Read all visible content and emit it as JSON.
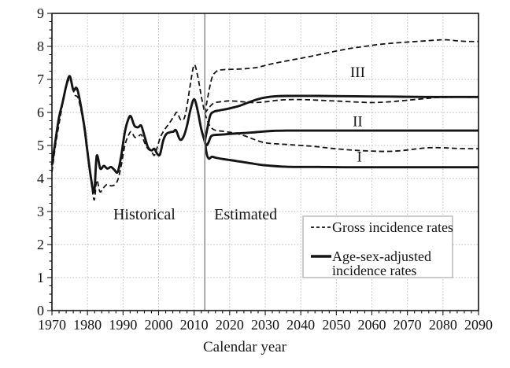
{
  "chart_data": {
    "type": "line",
    "title": "",
    "xlabel": "Calendar year",
    "ylabel": "",
    "xlim": [
      1970,
      2090
    ],
    "ylim": [
      0,
      9
    ],
    "x_tick_labels": [
      "1970",
      "1980",
      "1990",
      "2000",
      "2010",
      "2020",
      "2030",
      "2040",
      "2050",
      "2060",
      "2070",
      "2080",
      "2090"
    ],
    "x_ticks": [
      1970,
      1980,
      1990,
      2000,
      2010,
      2020,
      2030,
      2040,
      2050,
      2060,
      2070,
      2080,
      2090
    ],
    "x_minor_step": 2,
    "y_tick_labels": [
      "0",
      "1",
      "2",
      "3",
      "4",
      "5",
      "6",
      "7",
      "8",
      "9"
    ],
    "y_ticks": [
      0,
      1,
      2,
      3,
      4,
      5,
      6,
      7,
      8,
      9
    ],
    "y_minor_step": 0.25,
    "grid": true,
    "divider_x": 2013,
    "region_labels": [
      {
        "text": "Historical",
        "x": 1996,
        "y": 2.9
      },
      {
        "text": "Estimated",
        "x": 2024.5,
        "y": 2.9
      }
    ],
    "scenario_labels": [
      {
        "text": "III",
        "x": 2056,
        "y": 7.2
      },
      {
        "text": "II",
        "x": 2056,
        "y": 5.72
      },
      {
        "text": "I",
        "x": 2056.5,
        "y": 4.64
      }
    ],
    "legend": {
      "items": [
        {
          "style": "dashed",
          "lines": [
            "Gross incidence rates"
          ]
        },
        {
          "style": "solid",
          "lines": [
            "Age-sex-adjusted",
            "incidence rates"
          ]
        }
      ]
    },
    "colors": {
      "line": "#141414",
      "grid": "#b8b8b8",
      "divider": "#8c8c8c",
      "legend_border": "#aaaaaa",
      "background": "#ffffff"
    },
    "series": [
      {
        "name": "gross-historical",
        "legend": "Gross incidence rates",
        "style": "dashed",
        "points": [
          [
            1970,
            4.2
          ],
          [
            1971,
            5.0
          ],
          [
            1972,
            5.65
          ],
          [
            1973,
            6.25
          ],
          [
            1974,
            6.8
          ],
          [
            1975,
            7.02
          ],
          [
            1975.5,
            6.95
          ],
          [
            1976.3,
            6.55
          ],
          [
            1977.3,
            6.45
          ],
          [
            1978.3,
            6.0
          ],
          [
            1979.2,
            5.4
          ],
          [
            1980,
            4.75
          ],
          [
            1981,
            3.95
          ],
          [
            1981.9,
            3.35
          ],
          [
            1982.6,
            3.95
          ],
          [
            1983.5,
            3.6
          ],
          [
            1984.5,
            3.72
          ],
          [
            1985.5,
            3.82
          ],
          [
            1986.5,
            3.78
          ],
          [
            1987.5,
            3.8
          ],
          [
            1988.5,
            3.95
          ],
          [
            1989.5,
            4.4
          ],
          [
            1990.5,
            5.0
          ],
          [
            1991.5,
            5.3
          ],
          [
            1992.3,
            5.42
          ],
          [
            1993.3,
            5.25
          ],
          [
            1994.3,
            5.28
          ],
          [
            1995.2,
            5.32
          ],
          [
            1996,
            5.1
          ],
          [
            1997,
            4.9
          ],
          [
            1998,
            4.82
          ],
          [
            1998.8,
            4.7
          ],
          [
            1999.5,
            4.9
          ],
          [
            2000.5,
            5.25
          ],
          [
            2001.5,
            5.45
          ],
          [
            2002.5,
            5.6
          ],
          [
            2003.5,
            5.75
          ],
          [
            2004.5,
            5.92
          ],
          [
            2005.2,
            6.0
          ],
          [
            2006.2,
            5.78
          ],
          [
            2007.2,
            5.82
          ],
          [
            2008,
            6.2
          ],
          [
            2009,
            6.9
          ],
          [
            2010,
            7.44
          ],
          [
            2011,
            7.1
          ],
          [
            2012,
            6.5
          ],
          [
            2013,
            5.97
          ]
        ]
      },
      {
        "name": "gross-scenario-III",
        "legend": "Gross incidence rates",
        "scenario": "III",
        "style": "dashed",
        "points": [
          [
            2013,
            5.97
          ],
          [
            2014,
            6.55
          ],
          [
            2015,
            7.05
          ],
          [
            2016,
            7.22
          ],
          [
            2017,
            7.28
          ],
          [
            2019,
            7.3
          ],
          [
            2022,
            7.31
          ],
          [
            2025,
            7.33
          ],
          [
            2028,
            7.37
          ],
          [
            2031,
            7.45
          ],
          [
            2034,
            7.52
          ],
          [
            2038,
            7.6
          ],
          [
            2042,
            7.68
          ],
          [
            2046,
            7.77
          ],
          [
            2050,
            7.86
          ],
          [
            2054,
            7.94
          ],
          [
            2058,
            8.0
          ],
          [
            2062,
            8.06
          ],
          [
            2066,
            8.1
          ],
          [
            2070,
            8.13
          ],
          [
            2074,
            8.16
          ],
          [
            2078,
            8.19
          ],
          [
            2081,
            8.2
          ],
          [
            2084,
            8.17
          ],
          [
            2087,
            8.15
          ],
          [
            2090,
            8.15
          ]
        ]
      },
      {
        "name": "gross-scenario-I",
        "legend": "Gross incidence rates",
        "scenario": "I",
        "style": "dashed",
        "points": [
          [
            2013,
            5.97
          ],
          [
            2014,
            5.68
          ],
          [
            2015,
            5.52
          ],
          [
            2016,
            5.46
          ],
          [
            2018,
            5.43
          ],
          [
            2020,
            5.4
          ],
          [
            2022,
            5.36
          ],
          [
            2024,
            5.3
          ],
          [
            2026,
            5.22
          ],
          [
            2028,
            5.14
          ],
          [
            2030,
            5.08
          ],
          [
            2033,
            5.05
          ],
          [
            2036,
            5.03
          ],
          [
            2040,
            5.0
          ],
          [
            2044,
            4.97
          ],
          [
            2048,
            4.92
          ],
          [
            2052,
            4.88
          ],
          [
            2056,
            4.85
          ],
          [
            2060,
            4.83
          ],
          [
            2064,
            4.82
          ],
          [
            2068,
            4.84
          ],
          [
            2072,
            4.89
          ],
          [
            2076,
            4.93
          ],
          [
            2080,
            4.93
          ],
          [
            2084,
            4.91
          ],
          [
            2090,
            4.9
          ]
        ]
      },
      {
        "name": "adjusted-historical",
        "legend": "Age-sex-adjusted incidence rates",
        "style": "solid",
        "points": [
          [
            1970,
            4.4
          ],
          [
            1971,
            5.15
          ],
          [
            1972,
            5.85
          ],
          [
            1973,
            6.3
          ],
          [
            1974,
            6.8
          ],
          [
            1975,
            7.1
          ],
          [
            1976,
            6.68
          ],
          [
            1976.8,
            6.75
          ],
          [
            1977.4,
            6.6
          ],
          [
            1978.3,
            6.1
          ],
          [
            1979.2,
            5.5
          ],
          [
            1980,
            4.8
          ],
          [
            1981,
            4.0
          ],
          [
            1981.9,
            3.6
          ],
          [
            1982.6,
            4.68
          ],
          [
            1983.6,
            4.3
          ],
          [
            1984.6,
            4.38
          ],
          [
            1985.6,
            4.3
          ],
          [
            1986.6,
            4.35
          ],
          [
            1987.5,
            4.27
          ],
          [
            1988.5,
            4.2
          ],
          [
            1989.5,
            4.7
          ],
          [
            1990.5,
            5.4
          ],
          [
            1991.5,
            5.8
          ],
          [
            1992.2,
            5.88
          ],
          [
            1993.2,
            5.6
          ],
          [
            1994.2,
            5.55
          ],
          [
            1995.1,
            5.6
          ],
          [
            1996,
            5.3
          ],
          [
            1997,
            4.95
          ],
          [
            1998,
            4.85
          ],
          [
            1998.8,
            4.9
          ],
          [
            1999.6,
            4.75
          ],
          [
            2000.4,
            4.73
          ],
          [
            2001.3,
            5.15
          ],
          [
            2002.2,
            5.35
          ],
          [
            2003.2,
            5.4
          ],
          [
            2004.2,
            5.42
          ],
          [
            2004.9,
            5.46
          ],
          [
            2006,
            5.18
          ],
          [
            2007,
            5.26
          ],
          [
            2008,
            5.6
          ],
          [
            2009,
            6.1
          ],
          [
            2010,
            6.4
          ],
          [
            2011,
            6.05
          ],
          [
            2012,
            5.5
          ],
          [
            2013,
            5.12
          ]
        ]
      },
      {
        "name": "adjusted-scenario-III",
        "legend": "Age-sex-adjusted incidence rates",
        "scenario": "III",
        "style": "solid",
        "points": [
          [
            2013,
            5.12
          ],
          [
            2013.6,
            5.45
          ],
          [
            2014.5,
            5.9
          ],
          [
            2015.5,
            6.02
          ],
          [
            2017,
            6.06
          ],
          [
            2019,
            6.1
          ],
          [
            2021,
            6.15
          ],
          [
            2023,
            6.21
          ],
          [
            2025,
            6.29
          ],
          [
            2027,
            6.37
          ],
          [
            2029,
            6.43
          ],
          [
            2031,
            6.47
          ],
          [
            2033,
            6.49
          ],
          [
            2036,
            6.5
          ],
          [
            2045,
            6.5
          ],
          [
            2055,
            6.49
          ],
          [
            2065,
            6.48
          ],
          [
            2075,
            6.47
          ],
          [
            2090,
            6.47
          ]
        ]
      },
      {
        "name": "adjusted-scenario-II",
        "legend": "Age-sex-adjusted incidence rates",
        "scenario": "II",
        "style": "solid",
        "points": [
          [
            2013,
            5.12
          ],
          [
            2013.4,
            5.0
          ],
          [
            2014,
            5.08
          ],
          [
            2014.8,
            5.28
          ],
          [
            2016,
            5.32
          ],
          [
            2018,
            5.33
          ],
          [
            2020,
            5.35
          ],
          [
            2023,
            5.37
          ],
          [
            2026,
            5.39
          ],
          [
            2029,
            5.42
          ],
          [
            2032,
            5.44
          ],
          [
            2036,
            5.45
          ],
          [
            2045,
            5.45
          ],
          [
            2060,
            5.45
          ],
          [
            2075,
            5.45
          ],
          [
            2090,
            5.45
          ]
        ]
      },
      {
        "name": "adjusted-scenario-I",
        "legend": "Age-sex-adjusted incidence rates",
        "scenario": "I",
        "style": "solid",
        "points": [
          [
            2013,
            5.12
          ],
          [
            2013.6,
            4.72
          ],
          [
            2014.2,
            4.6
          ],
          [
            2015,
            4.66
          ],
          [
            2016,
            4.63
          ],
          [
            2018,
            4.59
          ],
          [
            2020,
            4.56
          ],
          [
            2023,
            4.51
          ],
          [
            2026,
            4.46
          ],
          [
            2029,
            4.41
          ],
          [
            2032,
            4.38
          ],
          [
            2035,
            4.36
          ],
          [
            2038,
            4.35
          ],
          [
            2045,
            4.35
          ],
          [
            2055,
            4.34
          ],
          [
            2070,
            4.34
          ],
          [
            2090,
            4.34
          ]
        ]
      },
      {
        "name": "gross-scenario-II",
        "legend": "Gross incidence rates",
        "scenario": "II",
        "style": "dashed",
        "points": [
          [
            2013,
            5.97
          ],
          [
            2014,
            6.12
          ],
          [
            2015,
            6.24
          ],
          [
            2016,
            6.3
          ],
          [
            2018,
            6.33
          ],
          [
            2020,
            6.35
          ],
          [
            2023,
            6.33
          ],
          [
            2026,
            6.3
          ],
          [
            2029,
            6.31
          ],
          [
            2032,
            6.35
          ],
          [
            2035,
            6.38
          ],
          [
            2039,
            6.39
          ],
          [
            2043,
            6.38
          ],
          [
            2047,
            6.36
          ],
          [
            2051,
            6.34
          ],
          [
            2055,
            6.32
          ],
          [
            2059,
            6.3
          ],
          [
            2063,
            6.31
          ],
          [
            2067,
            6.34
          ],
          [
            2071,
            6.38
          ],
          [
            2075,
            6.42
          ],
          [
            2078,
            6.45
          ],
          [
            2082,
            6.46
          ],
          [
            2090,
            6.46
          ]
        ]
      }
    ]
  }
}
